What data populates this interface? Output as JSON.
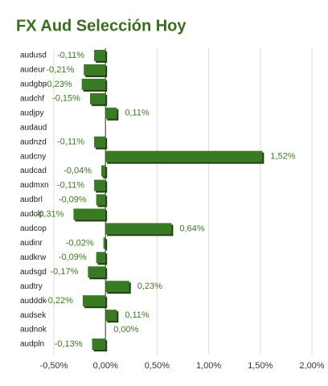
{
  "chart_data": {
    "type": "hbar",
    "title": "FX Aud Selección Hoy",
    "categories": [
      "audusd",
      "audeur",
      "audgbp",
      "audchf",
      "audjpy",
      "audaud",
      "audnzd",
      "audcny",
      "audcad",
      "audmxn",
      "audbrl",
      "audclp",
      "audcop",
      "audinr",
      "audkrw",
      "audsgd",
      "audtry",
      "audddk",
      "audsek",
      "audnok",
      "audpln"
    ],
    "values": [
      -0.11,
      -0.21,
      -0.23,
      -0.15,
      0.11,
      null,
      -0.11,
      1.52,
      -0.04,
      -0.11,
      -0.09,
      -0.31,
      0.64,
      -0.02,
      -0.09,
      -0.17,
      0.23,
      -0.22,
      0.11,
      0.0,
      -0.13
    ],
    "value_labels": [
      "-0,11%",
      "-0,21%",
      "-0,23%",
      "-0,15%",
      "0,11%",
      null,
      "-0,11%",
      "1,52%",
      "-0,04%",
      "-0,11%",
      "-0,09%",
      "-0,31%",
      "0,64%",
      "-0,02%",
      "-0,09%",
      "-0,17%",
      "0,23%",
      "-0,22%",
      "0,11%",
      "0,00%",
      "-0,13%"
    ],
    "color": "#3b7a25",
    "xlim": [
      -0.5,
      2.0
    ],
    "xticks": [
      {
        "value": -0.5,
        "label": "-0,50%"
      },
      {
        "value": 0,
        "label": "0,00%"
      },
      {
        "value": 0.5,
        "label": "0,50%"
      },
      {
        "value": 1.0,
        "label": "1,00%"
      },
      {
        "value": 1.5,
        "label": "1,50%"
      },
      {
        "value": 2.0,
        "label": "2,00%"
      }
    ],
    "grid": true
  }
}
